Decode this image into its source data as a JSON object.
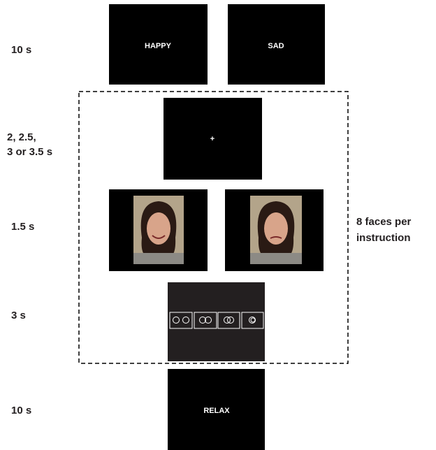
{
  "rows": [
    {
      "duration": "10 s",
      "screens": [
        "HAPPY",
        "SAD"
      ]
    },
    {
      "duration": [
        "2, 2.5,",
        "3 or 3.5 s"
      ],
      "screens": [
        "+"
      ]
    },
    {
      "duration": "1.5 s"
    },
    {
      "duration": "3 s"
    },
    {
      "duration": "10 s",
      "screens": [
        "RELAX"
      ]
    }
  ],
  "note": [
    "8 faces per",
    "instruction"
  ]
}
